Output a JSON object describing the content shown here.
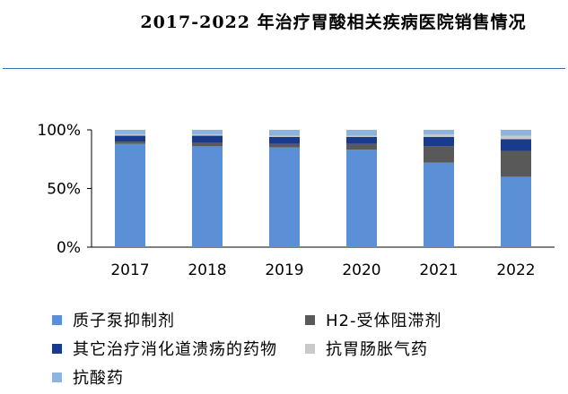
{
  "title": "2017-2022 年治疗胃酸相关疾病医院销售情况",
  "chart_data": {
    "type": "bar",
    "stacked": true,
    "title": "2017-2022 年治疗胃酸相关疾病医院销售情况",
    "categories": [
      "2017",
      "2018",
      "2019",
      "2020",
      "2021",
      "2022"
    ],
    "y_ticks": [
      "0%",
      "50%",
      "100%"
    ],
    "ylim": [
      0,
      100
    ],
    "grid": false,
    "legend_position": "bottom",
    "series": [
      {
        "name": "质子泵抑制剂",
        "color": "#5b8fd6",
        "values": [
          88,
          86,
          85,
          83,
          72,
          60
        ]
      },
      {
        "name": "H2-受体阻滞剂",
        "color": "#595959",
        "values": [
          2,
          3,
          3,
          5,
          14,
          22
        ]
      },
      {
        "name": "其它治疗消化道溃疡的药物",
        "color": "#1a3a8c",
        "values": [
          5,
          6,
          6,
          6,
          8,
          10
        ]
      },
      {
        "name": "抗胃肠胀气药",
        "color": "#c9c9c9",
        "values": [
          1,
          1,
          1,
          1,
          2,
          3
        ]
      },
      {
        "name": "抗酸药",
        "color": "#8fb4dc",
        "values": [
          4,
          4,
          5,
          5,
          4,
          5
        ]
      }
    ]
  }
}
